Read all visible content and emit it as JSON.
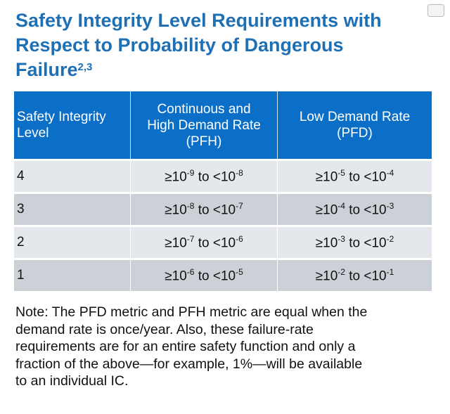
{
  "title": {
    "line1": "Safety Integrity Level Requirements with",
    "line2": "Respect to Probability of Dangerous",
    "line3": "Failure",
    "superscript": "2,3"
  },
  "table": {
    "headers": {
      "level": "Safety Integrity Level",
      "pfh_line1": "Continuous and",
      "pfh_line2": "High Demand Rate",
      "pfh_line3": "(PFH)",
      "pfd_line1": "Low Demand Rate",
      "pfd_line2": "(PFD)"
    },
    "rows": [
      {
        "level": "4",
        "pfh_low": "-9",
        "pfh_high": "-8",
        "pfd_low": "-5",
        "pfd_high": "-4"
      },
      {
        "level": "3",
        "pfh_low": "-8",
        "pfh_high": "-7",
        "pfd_low": "-4",
        "pfd_high": "-3"
      },
      {
        "level": "2",
        "pfh_low": "-7",
        "pfh_high": "-6",
        "pfd_low": "-3",
        "pfd_high": "-2"
      },
      {
        "level": "1",
        "pfh_low": "-6",
        "pfh_high": "-5",
        "pfd_low": "-2",
        "pfd_high": "-1"
      }
    ],
    "prefix": "≥10",
    "connector": " to <10"
  },
  "note": {
    "line1": "Note: The PFD metric and PFH metric are equal when the",
    "line2": "demand rate is once/year. Also, these failure-rate",
    "line3": "requirements are for an entire safety function and only a",
    "line4": "fraction of the above—for example, 1%—will be available",
    "line5": "to an individual IC."
  },
  "colors": {
    "title": "#1f6fb5",
    "header_bg": "#0b6fc7",
    "row_light": "#e4e7ec",
    "row_dark": "#ccd1d8"
  }
}
